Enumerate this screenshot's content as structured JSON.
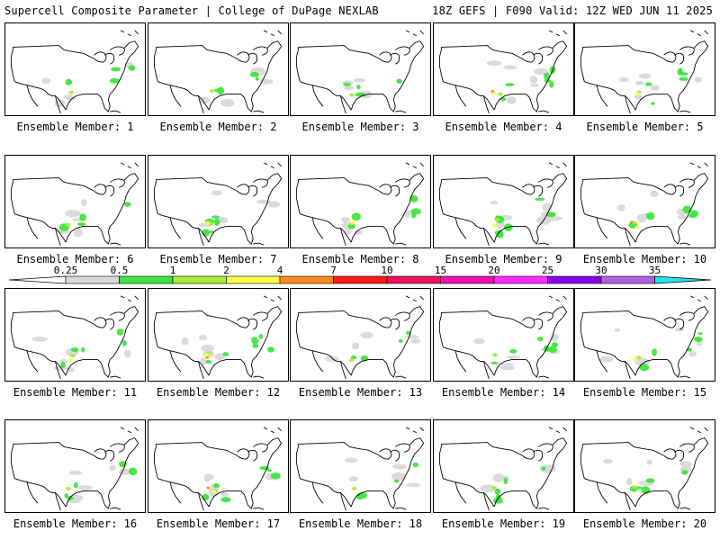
{
  "header": {
    "left_title": "Supercell Composite Parameter | College of DuPage NEXLAB",
    "right_title": "18Z GEFS | F090 Valid: 12Z WED JUN 11 2025"
  },
  "members": [
    {
      "label": "Ensemble Member: 1",
      "activity": 0.35,
      "peak": 1
    },
    {
      "label": "Ensemble Member: 2",
      "activity": 0.3,
      "peak": 1
    },
    {
      "label": "Ensemble Member: 3",
      "activity": 0.4,
      "peak": 1
    },
    {
      "label": "Ensemble Member: 4",
      "activity": 0.6,
      "peak": 4
    },
    {
      "label": "Ensemble Member: 5",
      "activity": 0.55,
      "peak": 2
    },
    {
      "label": "Ensemble Member: 6",
      "activity": 0.25,
      "peak": 1
    },
    {
      "label": "Ensemble Member: 7",
      "activity": 0.55,
      "peak": 2
    },
    {
      "label": "Ensemble Member: 8",
      "activity": 0.45,
      "peak": 2
    },
    {
      "label": "Ensemble Member: 9",
      "activity": 0.75,
      "peak": 2
    },
    {
      "label": "Ensemble Member: 10",
      "activity": 0.5,
      "peak": 4
    },
    {
      "label": "Ensemble Member: 11",
      "activity": 0.55,
      "peak": 2
    },
    {
      "label": "Ensemble Member: 12",
      "activity": 0.65,
      "peak": 4
    },
    {
      "label": "Ensemble Member: 13",
      "activity": 0.4,
      "peak": 1
    },
    {
      "label": "Ensemble Member: 14",
      "activity": 0.6,
      "peak": 1
    },
    {
      "label": "Ensemble Member: 15",
      "activity": 0.55,
      "peak": 2
    },
    {
      "label": "Ensemble Member: 16",
      "activity": 0.45,
      "peak": 1
    },
    {
      "label": "Ensemble Member: 17",
      "activity": 0.6,
      "peak": 4
    },
    {
      "label": "Ensemble Member: 18",
      "activity": 0.4,
      "peak": 1
    },
    {
      "label": "Ensemble Member: 19",
      "activity": 0.5,
      "peak": 1
    },
    {
      "label": "Ensemble Member: 20",
      "activity": 0.55,
      "peak": 1
    }
  ],
  "colorbar": {
    "bins": [
      {
        "label": "0.25",
        "color": "#d9d9d9"
      },
      {
        "label": "0.5",
        "color": "#3ee63e"
      },
      {
        "label": "1",
        "color": "#a6ee3a"
      },
      {
        "label": "2",
        "color": "#ffff4a"
      },
      {
        "label": "4",
        "color": "#ff8a1c"
      },
      {
        "label": "7",
        "color": "#ff1a1a"
      },
      {
        "label": "10",
        "color": "#f01060"
      },
      {
        "label": "15",
        "color": "#ee10b0"
      },
      {
        "label": "20",
        "color": "#ff2aff"
      },
      {
        "label": "25",
        "color": "#8800ee"
      },
      {
        "label": "30",
        "color": "#b060e0"
      },
      {
        "label": "35",
        "color": "#22e6ee"
      }
    ],
    "low_color": "#ffffff"
  }
}
